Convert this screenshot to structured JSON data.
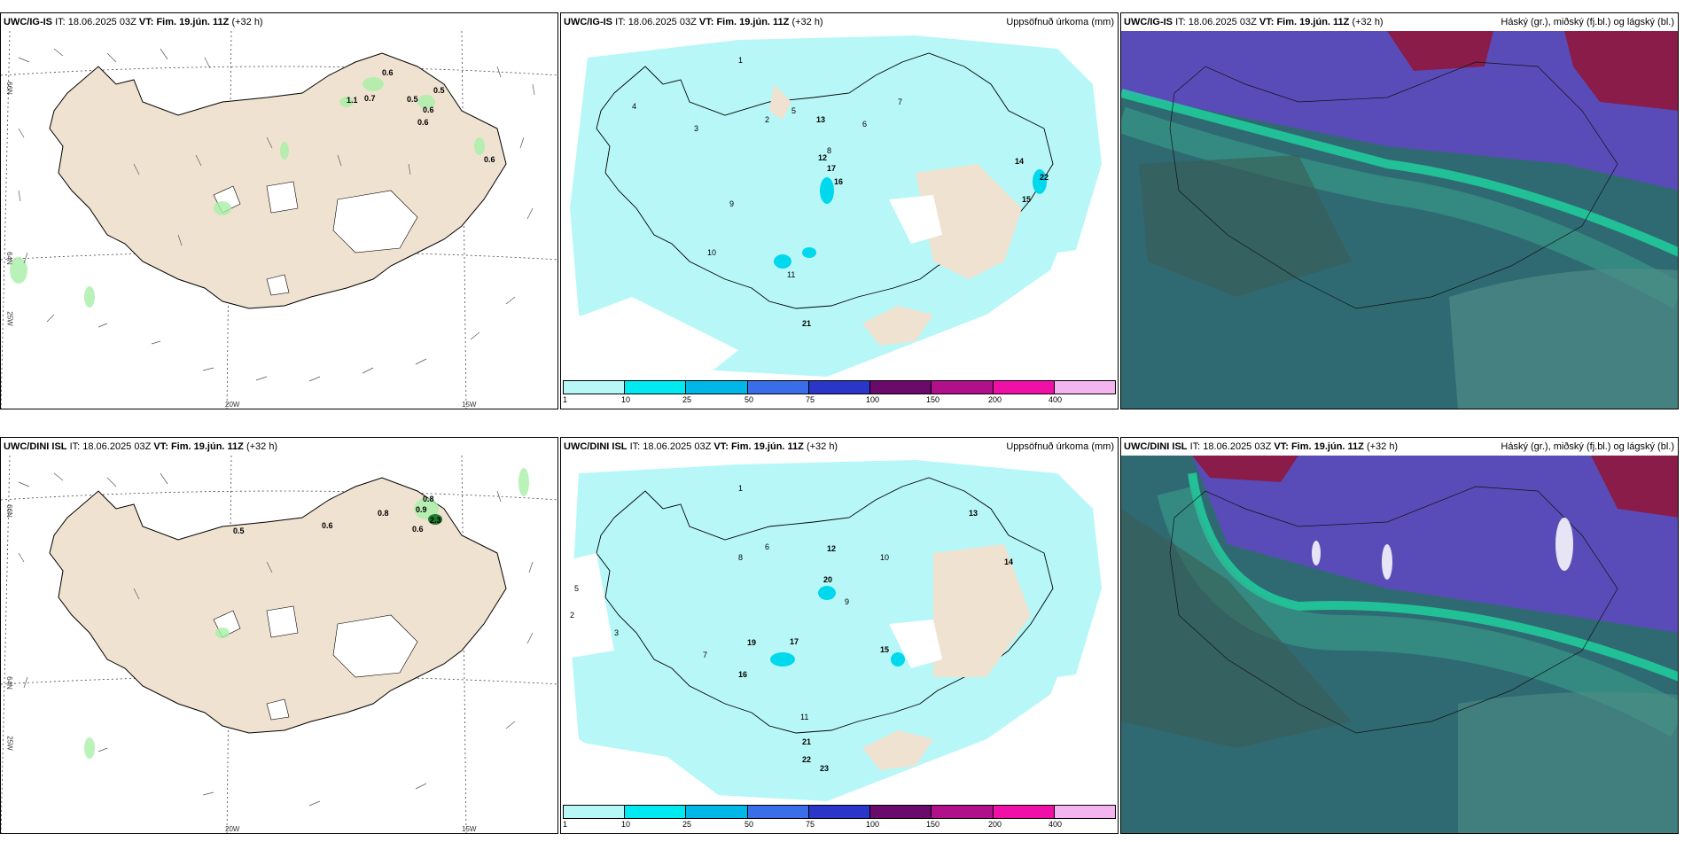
{
  "panels": [
    {
      "model": "UWC/IG-IS",
      "it_label": "IT:",
      "it": "18.06.2025 03Z",
      "vt_label": "VT:",
      "vt": "Fim. 19.jún. 11Z",
      "lead": "(+32 h)",
      "right_title": ""
    },
    {
      "model": "UWC/IG-IS",
      "it_label": "IT:",
      "it": "18.06.2025 03Z",
      "vt_label": "VT:",
      "vt": "Fim. 19.jún. 11Z",
      "lead": "(+32 h)",
      "right_title": "Uppsöfnuð úrkoma (mm)"
    },
    {
      "model": "UWC/IG-IS",
      "it_label": "IT:",
      "it": "18.06.2025 03Z",
      "vt_label": "VT:",
      "vt": "Fim. 19.jún. 11Z",
      "lead": "(+32 h)",
      "right_title": "Háský (gr.), miðský (fj.bl.) og lágský (bl.)"
    },
    {
      "model": "UWC/DINI ISL",
      "it_label": "IT:",
      "it": "18.06.2025 03Z",
      "vt_label": "VT:",
      "vt": "Fim. 19.jún. 11Z",
      "lead": "(+32 h)",
      "right_title": ""
    },
    {
      "model": "UWC/DINI ISL",
      "it_label": "IT:",
      "it": "18.06.2025 03Z",
      "vt_label": "VT:",
      "vt": "Fim. 19.jún. 11Z",
      "lead": "(+32 h)",
      "right_title": "Uppsöfnuð úrkoma (mm)"
    },
    {
      "model": "UWC/DINI ISL",
      "it_label": "IT:",
      "it": "18.06.2025 03Z",
      "vt_label": "VT:",
      "vt": "Fim. 19.jún. 11Z",
      "lead": "(+32 h)",
      "right_title": "Háský (gr.), miðský (fj.bl.) og lágský (bl.)"
    }
  ],
  "axes": {
    "lat66": "66N",
    "lat64": "64N",
    "lon20": "20W",
    "lon15": "15W",
    "lon25": "25W"
  },
  "wind_labels_top": [
    "0.6",
    "0.7",
    "1.1",
    "0.5",
    "0.5",
    "0.6",
    "0.6",
    "0.6"
  ],
  "wind_labels_bottom": [
    "0.5",
    "0.6",
    "0.8",
    "0.8",
    "0.9",
    "2.3",
    "0.6"
  ],
  "precip_legend": {
    "ticks": [
      "1",
      "10",
      "25",
      "50",
      "75",
      "100",
      "150",
      "200",
      "400"
    ],
    "colors": [
      "#b8f7f7",
      "#00e8f0",
      "#00b8e8",
      "#3a6ee8",
      "#2a36c8",
      "#6a0a6a",
      "#b0108a",
      "#f010a8",
      "#f4b4f0"
    ]
  },
  "precip_values_top": [
    "1",
    "2",
    "3",
    "4",
    "5",
    "6",
    "7",
    "8",
    "9",
    "10",
    "11",
    "12",
    "13",
    "14",
    "15",
    "16",
    "17",
    "21",
    "22"
  ],
  "precip_values_bottom": [
    "1",
    "2",
    "3",
    "5",
    "6",
    "7",
    "8",
    "9",
    "10",
    "11",
    "12",
    "13",
    "14",
    "15",
    "16",
    "17",
    "19",
    "20",
    "21",
    "22",
    "23"
  ],
  "colors": {
    "land": "#f0e2d0",
    "precip_light": "#b8f7f7",
    "cloud_low": "#2f6a73",
    "cloud_mid": "#5a4cb8",
    "cloud_high": "#8a1c4a",
    "cloud_front": "#1fd6a0"
  }
}
